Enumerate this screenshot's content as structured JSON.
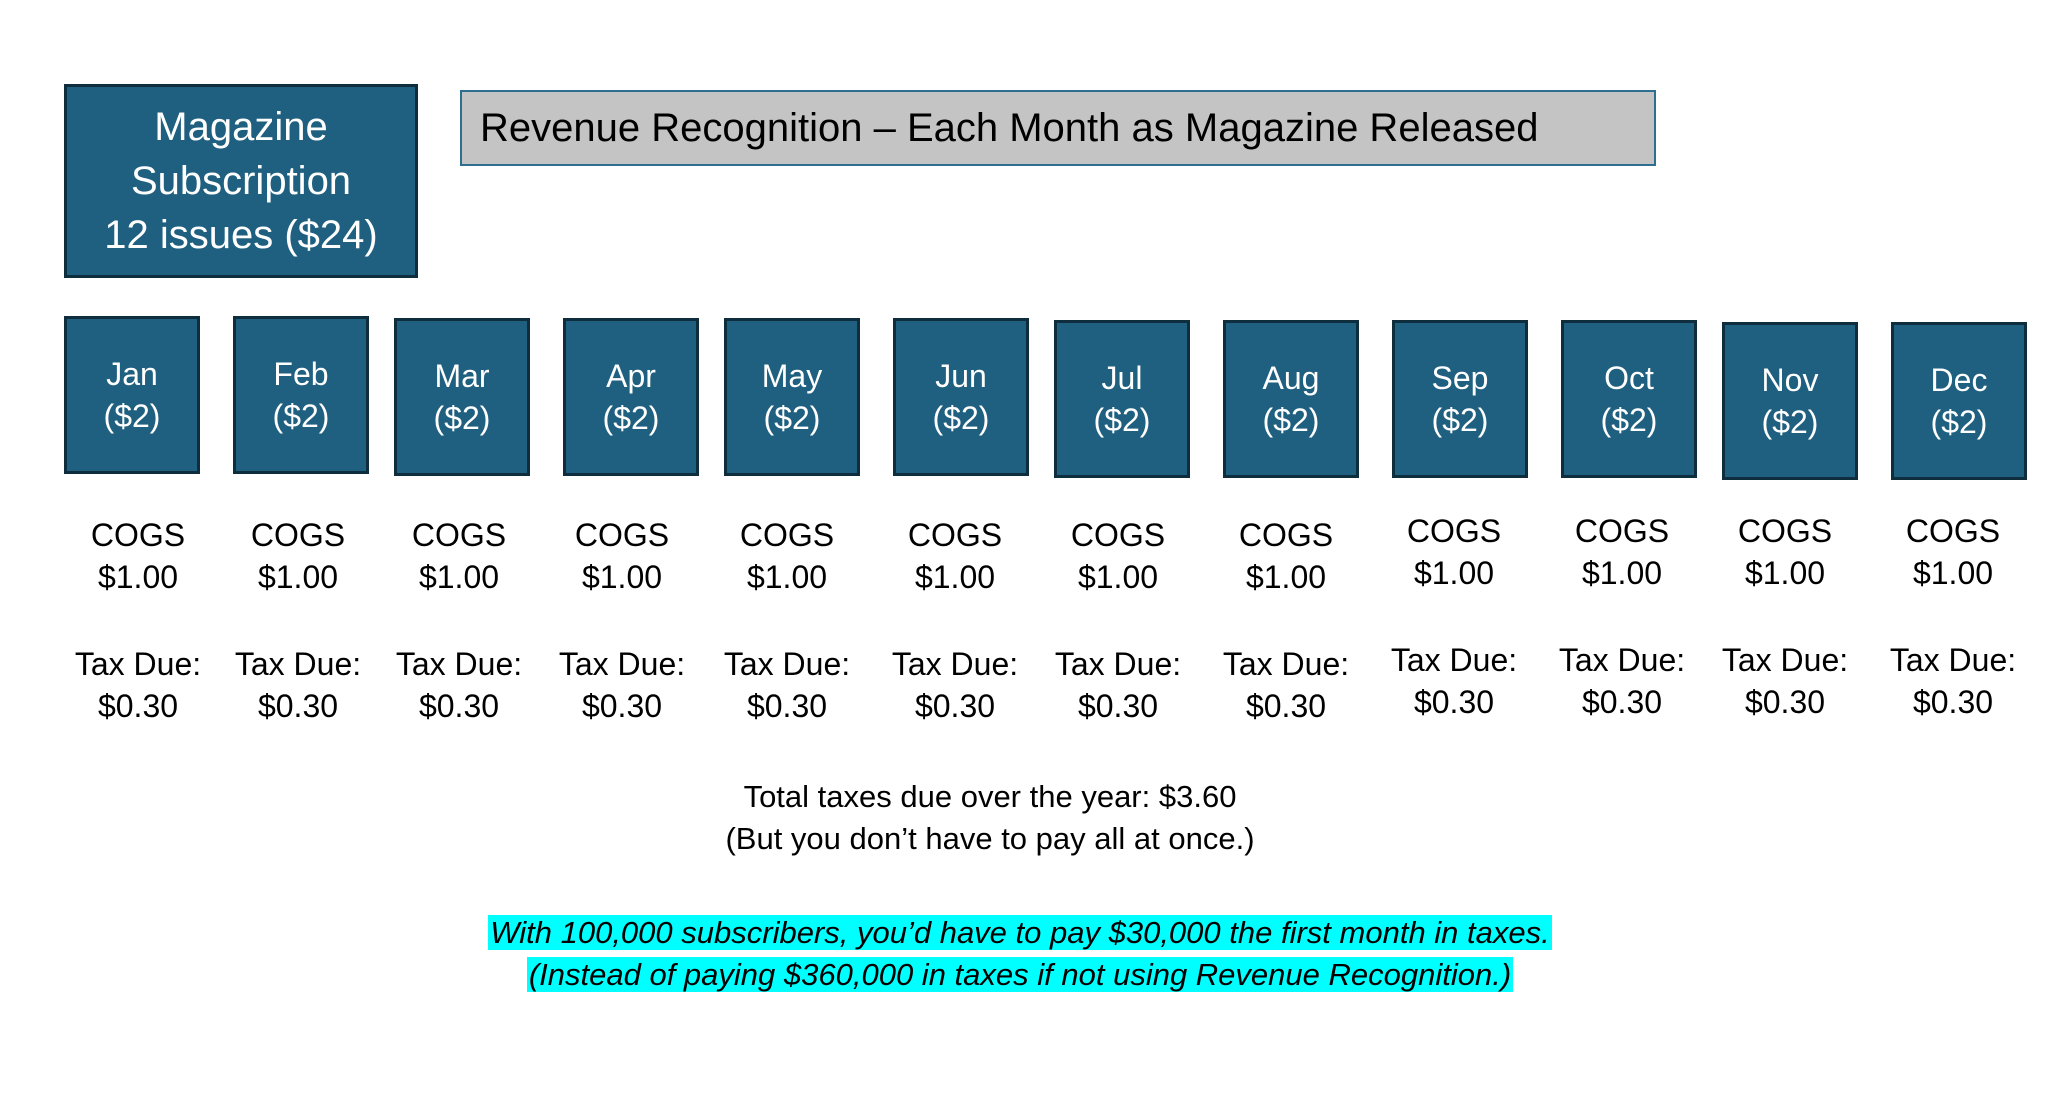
{
  "subscription": {
    "line1": "Magazine",
    "line2": "Subscription",
    "line3": "12 issues ($24)"
  },
  "title": "Revenue Recognition – Each Month as Magazine Released",
  "months": [
    {
      "name": "Jan",
      "amount": "($2)",
      "cogs_label": "COGS",
      "cogs": "$1.00",
      "tax_label": "Tax Due:",
      "tax": "$0.30"
    },
    {
      "name": "Feb",
      "amount": "($2)",
      "cogs_label": "COGS",
      "cogs": "$1.00",
      "tax_label": "Tax Due:",
      "tax": "$0.30"
    },
    {
      "name": "Mar",
      "amount": "($2)",
      "cogs_label": "COGS",
      "cogs": "$1.00",
      "tax_label": "Tax Due:",
      "tax": "$0.30"
    },
    {
      "name": "Apr",
      "amount": "($2)",
      "cogs_label": "COGS",
      "cogs": "$1.00",
      "tax_label": "Tax Due:",
      "tax": "$0.30"
    },
    {
      "name": "May",
      "amount": "($2)",
      "cogs_label": "COGS",
      "cogs": "$1.00",
      "tax_label": "Tax Due:",
      "tax": "$0.30"
    },
    {
      "name": "Jun",
      "amount": "($2)",
      "cogs_label": "COGS",
      "cogs": "$1.00",
      "tax_label": "Tax Due:",
      "tax": "$0.30"
    },
    {
      "name": "Jul",
      "amount": "($2)",
      "cogs_label": "COGS",
      "cogs": "$1.00",
      "tax_label": "Tax Due:",
      "tax": "$0.30"
    },
    {
      "name": "Aug",
      "amount": "($2)",
      "cogs_label": "COGS",
      "cogs": "$1.00",
      "tax_label": "Tax Due:",
      "tax": "$0.30"
    },
    {
      "name": "Sep",
      "amount": "($2)",
      "cogs_label": "COGS",
      "cogs": "$1.00",
      "tax_label": "Tax Due:",
      "tax": "$0.30"
    },
    {
      "name": "Oct",
      "amount": "($2)",
      "cogs_label": "COGS",
      "cogs": "$1.00",
      "tax_label": "Tax Due:",
      "tax": "$0.30"
    },
    {
      "name": "Nov",
      "amount": "($2)",
      "cogs_label": "COGS",
      "cogs": "$1.00",
      "tax_label": "Tax Due:",
      "tax": "$0.30"
    },
    {
      "name": "Dec",
      "amount": "($2)",
      "cogs_label": "COGS",
      "cogs": "$1.00",
      "tax_label": "Tax Due:",
      "tax": "$0.30"
    }
  ],
  "summary": {
    "line1": "Total taxes due over the year: $3.60",
    "line2": "(But you don’t have to pay all at once.)"
  },
  "highlight": {
    "line1": "With 100,000 subscribers, you’d have to pay $30,000 the first month in taxes.",
    "line2": "(Instead of paying $360,000 in taxes if not using Revenue Recognition.)"
  },
  "colors": {
    "box_fill": "#1f5f7f",
    "box_border": "#0f2e3d",
    "title_fill": "#c4c4c4",
    "highlight": "#00ffff"
  }
}
